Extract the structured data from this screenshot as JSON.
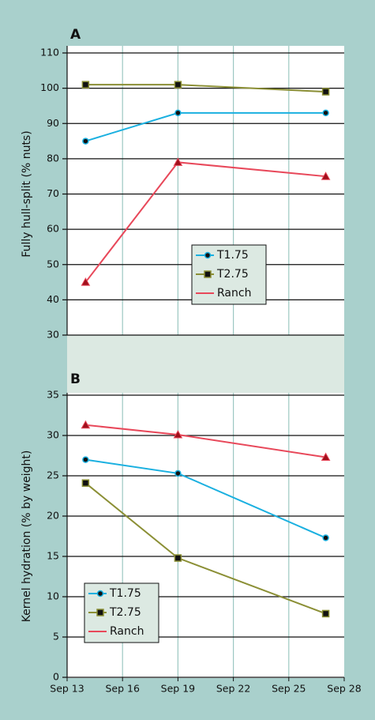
{
  "chart_data": [
    {
      "type": "line",
      "title": "A",
      "y_label": "Fully hull-split (% nuts)",
      "x": [
        14,
        19,
        27
      ],
      "series": [
        {
          "name": "T1.75",
          "color": "#1ab0e0",
          "marker": "circle",
          "values": [
            85,
            93,
            93
          ]
        },
        {
          "name": "T2.75",
          "color": "#8b8f35",
          "marker": "square",
          "values": [
            101,
            101,
            99
          ]
        },
        {
          "name": "Ranch",
          "color": "#e8485a",
          "marker": "triangle",
          "values": [
            45,
            79,
            75
          ]
        }
      ],
      "xlim": [
        13,
        28
      ],
      "xticks": [
        13,
        16,
        19,
        22,
        25,
        28
      ],
      "ylim": [
        30,
        110
      ],
      "yticks": [
        30,
        40,
        50,
        60,
        70,
        80,
        90,
        100,
        110
      ],
      "grid": true,
      "legend": "center"
    },
    {
      "type": "line",
      "title": "B",
      "y_label": "Kernel hydration (% by weight)",
      "x": [
        14,
        19,
        27
      ],
      "series": [
        {
          "name": "T1.75",
          "color": "#1ab0e0",
          "marker": "circle",
          "values": [
            27,
            25.3,
            17.3
          ]
        },
        {
          "name": "T2.75",
          "color": "#8b8f35",
          "marker": "square",
          "values": [
            24.1,
            14.8,
            7.9
          ]
        },
        {
          "name": "Ranch",
          "color": "#e8485a",
          "marker": "triangle",
          "values": [
            31.3,
            30.1,
            27.3
          ]
        }
      ],
      "xlim": [
        13,
        28
      ],
      "xticks": [
        {
          "value": 13,
          "label": "Sep 13"
        },
        {
          "value": 16,
          "label": "Sep 16"
        },
        {
          "value": 19,
          "label": "Sep 19"
        },
        {
          "value": 22,
          "label": "Sep 22"
        },
        {
          "value": 25,
          "label": "Sep 25"
        },
        {
          "value": 28,
          "label": "Sep 28"
        }
      ],
      "ylim": [
        0,
        35
      ],
      "yticks": [
        0,
        5,
        10,
        15,
        20,
        25,
        30,
        35
      ],
      "grid": true,
      "legend": "lower left"
    }
  ]
}
